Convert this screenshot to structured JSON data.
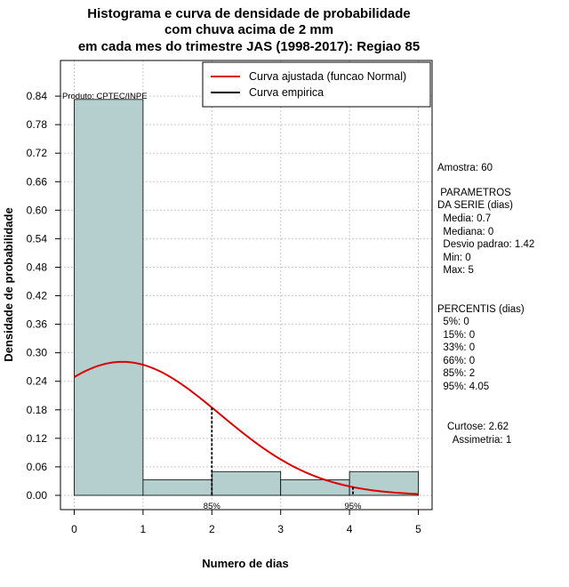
{
  "chart_data": {
    "type": "histogram",
    "title_lines": [
      "Histograma e curva de densidade de probabilidade",
      "com chuva acima de 2 mm",
      "em cada mes do trimestre JAS (1998-2017): Regiao 85"
    ],
    "xlabel": "Numero de dias",
    "ylabel": "Densidade de probabilidade",
    "xlim": [
      -0.2,
      5.2
    ],
    "ylim": [
      -0.03,
      0.915
    ],
    "x_ticks": [
      0,
      1,
      2,
      3,
      4,
      5
    ],
    "y_ticks": [
      0.0,
      0.06,
      0.12,
      0.18,
      0.24,
      0.3,
      0.36,
      0.42,
      0.48,
      0.54,
      0.6,
      0.66,
      0.72,
      0.78,
      0.84
    ],
    "y_tick_labels": [
      "0.00",
      "0.06",
      "0.12",
      "0.18",
      "0.24",
      "0.30",
      "0.36",
      "0.42",
      "0.48",
      "0.54",
      "0.60",
      "0.66",
      "0.72",
      "0.78",
      "0.84"
    ],
    "bins": [
      {
        "x0": 0,
        "x1": 1,
        "density": 0.833
      },
      {
        "x0": 1,
        "x1": 2,
        "density": 0.033
      },
      {
        "x0": 2,
        "x1": 3,
        "density": 0.05
      },
      {
        "x0": 3,
        "x1": 4,
        "density": 0.033
      },
      {
        "x0": 4,
        "x1": 5,
        "density": 0.05
      }
    ],
    "normal_fit": {
      "mean": 0.7,
      "sd": 1.42,
      "x_range": [
        0,
        5
      ]
    },
    "percentile_markers": [
      {
        "x": 2.0,
        "label": "85%"
      },
      {
        "x": 4.05,
        "label": "95%"
      }
    ],
    "legend": {
      "position": "top-right",
      "entries": [
        {
          "label": "Curva ajustada (funcao Normal)",
          "color": "#dd0000"
        },
        {
          "label": "Curva empirica",
          "color": "#000000"
        }
      ]
    },
    "annotation": "Produto: CPTEC/INPE",
    "colors": {
      "bar_fill": "#b5cece",
      "curve": "#dd0000",
      "grid": "#c8c8c8"
    }
  },
  "side_panel": {
    "amostra": "Amostra: 60",
    "param_title_1": " PARAMETROS",
    "param_title_2": "DA SERIE (dias)",
    "media": "  Media: 0.7",
    "mediana": "  Mediana: 0",
    "desvio": "  Desvio padrao: 1.42",
    "min": "  Min: 0",
    "max": "  Max: 5",
    "perc_title": "PERCENTIS (dias)",
    "p5": "  5%: 0",
    "p15": "  15%: 0",
    "p33": "  33%: 0",
    "p66": "  66%: 0",
    "p85": "  85%: 2",
    "p95": "  95%: 4.05",
    "curtose": "Curtose: 2.62",
    "assimetria": "  Assimetria: 1"
  }
}
